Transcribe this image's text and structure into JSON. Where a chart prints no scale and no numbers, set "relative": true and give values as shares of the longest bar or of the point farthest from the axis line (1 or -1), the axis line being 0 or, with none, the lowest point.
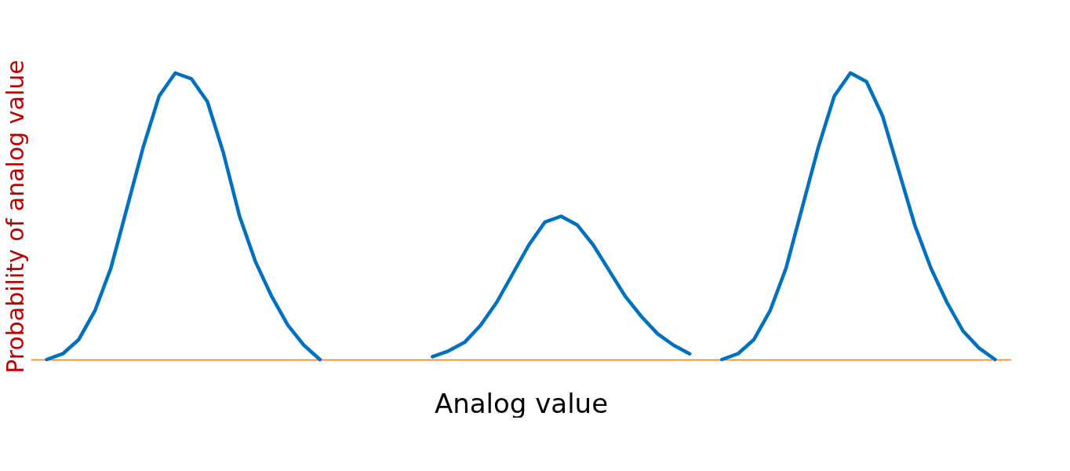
{
  "chart_data": {
    "type": "line",
    "xlabel": "Analog value",
    "ylabel": "Probability of analog value",
    "relative": true,
    "categories": [
      null,
      null,
      null,
      null,
      null,
      null,
      null,
      null,
      null,
      null,
      null,
      null,
      null,
      null,
      null,
      null,
      null,
      null,
      null,
      null,
      null,
      null,
      null,
      null,
      null,
      null,
      null,
      null,
      null,
      null,
      null,
      null,
      null,
      null,
      null,
      null,
      null,
      null,
      null,
      null,
      null,
      null,
      null,
      null,
      null,
      null,
      null,
      null,
      null,
      null,
      null,
      null,
      null,
      null,
      null,
      null,
      null,
      null,
      null,
      null
    ],
    "series": [
      {
        "color": "#0070c0",
        "values": [
          0,
          0.02,
          0.07,
          0.17,
          0.32,
          0.53,
          0.74,
          0.92,
          1,
          0.98,
          0.9,
          0.72,
          0.5,
          0.34,
          0.22,
          0.12,
          0.05,
          0,
          null,
          null,
          null,
          null,
          null,
          null,
          null,
          null,
          null,
          null,
          null,
          null,
          null,
          null,
          null,
          null,
          null,
          null,
          null,
          null,
          null,
          null,
          null,
          null,
          null,
          null,
          null,
          null,
          null,
          null,
          null,
          null,
          null,
          null,
          null,
          null,
          null,
          null,
          null,
          null,
          null,
          null
        ]
      },
      {
        "color": "#0070c0",
        "values": [
          null,
          null,
          null,
          null,
          null,
          null,
          null,
          null,
          null,
          null,
          null,
          null,
          null,
          null,
          null,
          null,
          null,
          null,
          null,
          null,
          null,
          null,
          null,
          null,
          0.01,
          0.03,
          0.06,
          0.12,
          0.2,
          0.3,
          0.4,
          0.48,
          0.5,
          0.47,
          0.4,
          0.31,
          0.22,
          0.15,
          0.09,
          0.05,
          0.02,
          null,
          null,
          null,
          null,
          null,
          null,
          null,
          null,
          null,
          null,
          null,
          null,
          null,
          null,
          null,
          null,
          null,
          null,
          null
        ]
      },
      {
        "color": "#0070c0",
        "values": [
          null,
          null,
          null,
          null,
          null,
          null,
          null,
          null,
          null,
          null,
          null,
          null,
          null,
          null,
          null,
          null,
          null,
          null,
          null,
          null,
          null,
          null,
          null,
          null,
          null,
          null,
          null,
          null,
          null,
          null,
          null,
          null,
          null,
          null,
          null,
          null,
          null,
          null,
          null,
          null,
          null,
          null,
          0,
          0.02,
          0.07,
          0.17,
          0.32,
          0.53,
          0.74,
          0.92,
          1,
          0.97,
          0.85,
          0.66,
          0.47,
          0.32,
          0.2,
          0.1,
          0.04,
          0
        ]
      }
    ]
  }
}
